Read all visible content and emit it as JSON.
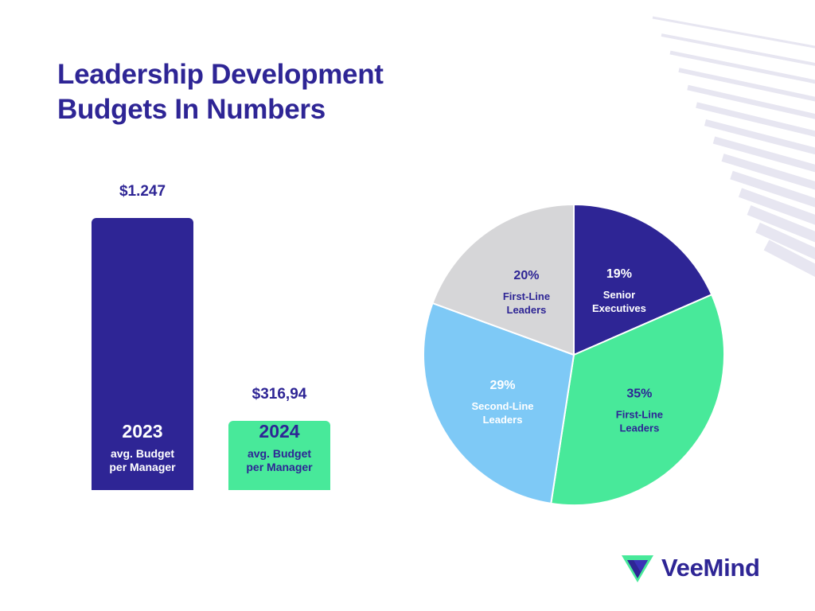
{
  "title": {
    "line1": "Leadership Development",
    "line2": "Budgets In Numbers"
  },
  "colors": {
    "navy": "#2e2595",
    "green": "#48e99a",
    "lightblue": "#7ec9f6",
    "gray": "#d6d6d8",
    "white": "#ffffff"
  },
  "chart_data": [
    {
      "type": "bar",
      "categories": [
        "2023",
        "2024"
      ],
      "values": [
        1247,
        316.94
      ],
      "value_labels": [
        "$1.247",
        "$316,94"
      ],
      "bar_text": [
        "avg. Budget\nper Manager",
        "avg. Budget\nper Manager"
      ],
      "bar_colors": [
        "#2e2595",
        "#48e99a"
      ],
      "ylim": [
        0,
        1247
      ]
    },
    {
      "type": "pie",
      "start_angle_deg": 0,
      "direction": "clockwise",
      "slices": [
        {
          "percent": 19,
          "pct_label": "19%",
          "label": "Senior\nExecutives",
          "color": "#2e2595",
          "text_color": "#ffffff"
        },
        {
          "percent": 35,
          "pct_label": "35%",
          "label": "First-Line\nLeaders",
          "color": "#48e99a",
          "text_color": "#2e2595"
        },
        {
          "percent": 29,
          "pct_label": "29%",
          "label": "Second-Line\nLeaders",
          "color": "#7ec9f6",
          "text_color": "#ffffff"
        },
        {
          "percent": 20,
          "pct_label": "20%",
          "label": "First-Line\nLeaders",
          "color": "#d6d6d8",
          "text_color": "#2e2595"
        }
      ]
    }
  ],
  "logo": {
    "name": "VeeMind",
    "icon": "veemind-logo-icon"
  }
}
